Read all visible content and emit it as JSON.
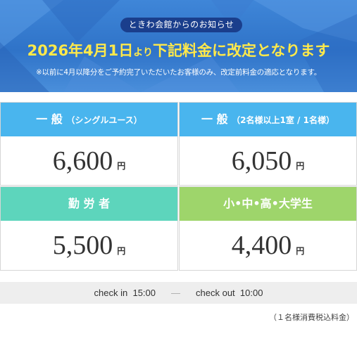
{
  "banner": {
    "pill": "ときわ会館からのお知らせ",
    "headline_main": "2026年4月1日",
    "headline_small": "より",
    "headline_rest": "下記料金に改定となります",
    "note": "※以前に4月以降分をご予約完了いただいたお客様のみ、改定前料金の適応となります。"
  },
  "prices": [
    {
      "title": "一 般",
      "subtitle": "（シングルユース）",
      "amount": "6,600",
      "unit": "円",
      "color": "#49b5ee"
    },
    {
      "title": "一 般",
      "subtitle": "（2名様以上1室 / 1名様）",
      "amount": "6,050",
      "unit": "円",
      "color": "#49b5ee"
    },
    {
      "title": "勤 労 者",
      "subtitle": "",
      "amount": "5,500",
      "unit": "円",
      "color": "#5dd5bc"
    },
    {
      "title": "小•中•高•大学生",
      "subtitle": "",
      "amount": "4,400",
      "unit": "円",
      "color": "#9ed56b"
    }
  ],
  "checkin": {
    "in_label": "check in",
    "in_time": "15:00",
    "separator": "—",
    "out_label": "check out",
    "out_time": "10:00"
  },
  "tax_note": "（１名様消費税込料金）"
}
